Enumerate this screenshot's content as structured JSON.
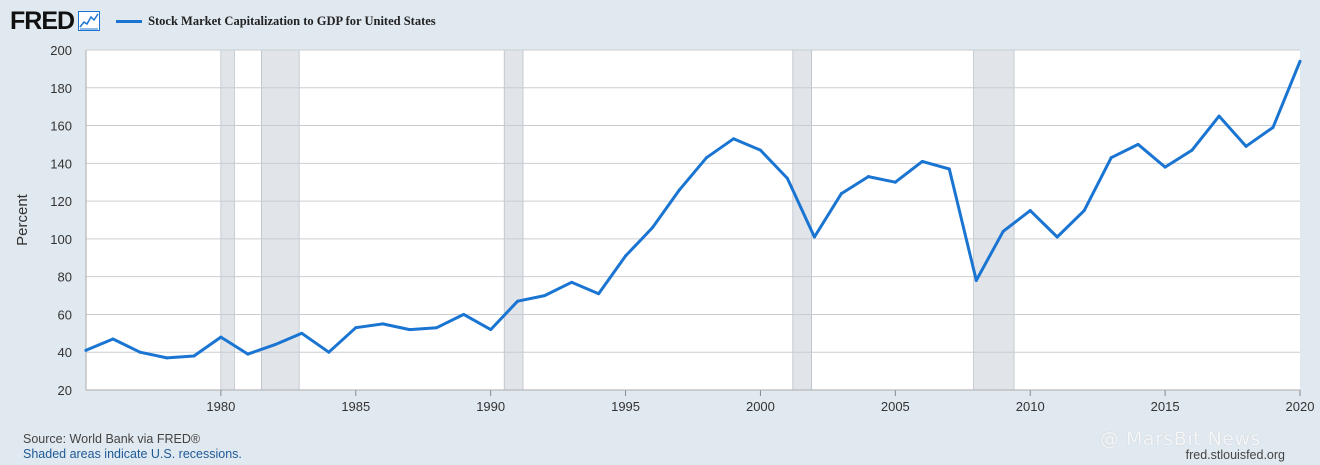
{
  "header": {
    "logo": "FRED",
    "logo_icon": "line-chart-icon"
  },
  "chart_data": {
    "type": "line",
    "title": "",
    "xlabel": "",
    "ylabel": "Percent",
    "series": [
      {
        "name": "Stock Market Capitalization to GDP for United States",
        "color": "#1a75d2",
        "x": [
          1975,
          1976,
          1977,
          1978,
          1979,
          1980,
          1981,
          1982,
          1983,
          1984,
          1985,
          1986,
          1987,
          1988,
          1989,
          1990,
          1991,
          1992,
          1993,
          1994,
          1995,
          1996,
          1997,
          1998,
          1999,
          2000,
          2001,
          2002,
          2003,
          2004,
          2005,
          2006,
          2007,
          2008,
          2009,
          2010,
          2011,
          2012,
          2013,
          2014,
          2015,
          2016,
          2017,
          2018,
          2019,
          2020
        ],
        "values": [
          41,
          47,
          40,
          37,
          38,
          48,
          39,
          44,
          50,
          40,
          53,
          55,
          52,
          53,
          60,
          52,
          67,
          70,
          77,
          71,
          91,
          106,
          126,
          143,
          153,
          147,
          132,
          101,
          124,
          133,
          130,
          141,
          137,
          78,
          104,
          115,
          101,
          115,
          143,
          150,
          138,
          147,
          165,
          149,
          159,
          194
        ]
      }
    ],
    "ylim": [
      20,
      200
    ],
    "xlim": [
      1975,
      2020
    ],
    "yticks": [
      "20",
      "40",
      "60",
      "80",
      "100",
      "120",
      "140",
      "160",
      "180",
      "200"
    ],
    "xticks": [
      "1980",
      "1985",
      "1990",
      "1995",
      "2000",
      "2005",
      "2010",
      "2015",
      "2020"
    ],
    "recessions": [
      [
        1980.0,
        1980.5
      ],
      [
        1981.5,
        1982.9
      ],
      [
        1990.5,
        1991.2
      ],
      [
        2001.2,
        2001.9
      ],
      [
        2007.9,
        2009.4
      ]
    ],
    "grid": true
  },
  "footer": {
    "source": "Source: World Bank via FRED®",
    "note": "Shaded areas indicate U.S. recessions.",
    "site": "fred.stlouisfed.org"
  },
  "watermark": "@ MarsBit News",
  "colors": {
    "line": "#1a75d2",
    "background": "#e1e9f0",
    "plot_bg": "#ffffff",
    "recession": "#e1e5ea",
    "grid": "#c9cdd2"
  }
}
